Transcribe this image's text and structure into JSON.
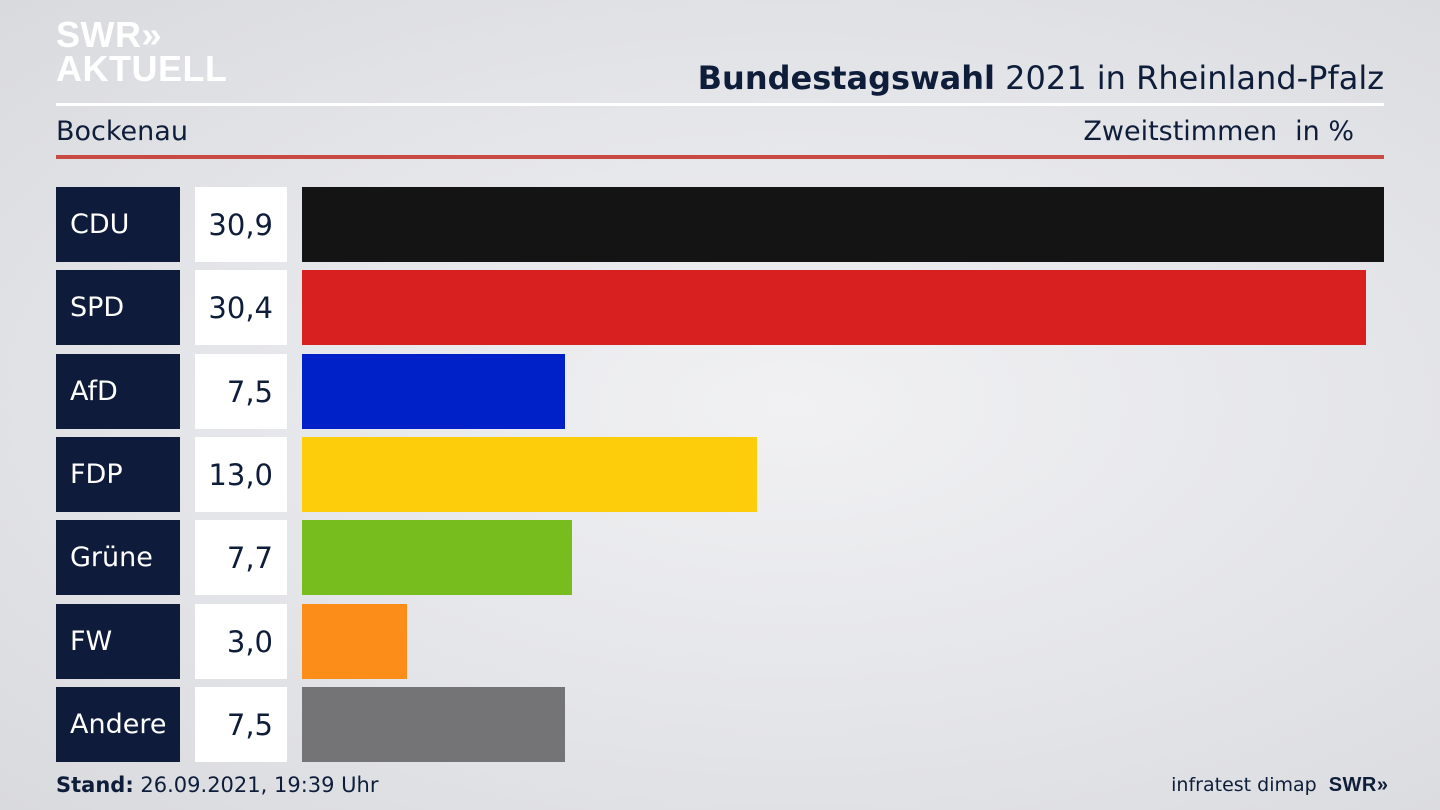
{
  "logo": {
    "line1": "SWR",
    "line1_arrows": "»",
    "line2": "AKTUELL"
  },
  "header": {
    "title_bold": "Bundestagswahl",
    "title_rest": " 2021 in Rheinland-Pfalz",
    "region": "Bockenau",
    "metric": "Zweitstimmen",
    "unit": "in %"
  },
  "footer": {
    "stand_label": "Stand:",
    "stand_value": " 26.09.2021, 19:39 Uhr",
    "source": "infratest dimap",
    "brand": "SWR",
    "brand_arrows": "»"
  },
  "chart_data": {
    "type": "bar",
    "orientation": "horizontal",
    "categories": [
      "CDU",
      "SPD",
      "AfD",
      "FDP",
      "Grüne",
      "FW",
      "Andere"
    ],
    "values": [
      30.9,
      30.4,
      7.5,
      13.0,
      7.7,
      3.0,
      7.5
    ],
    "value_labels": [
      "30,9",
      "30,4",
      "7,5",
      "13,0",
      "7,7",
      "3,0",
      "7,5"
    ],
    "colors": [
      "#141414",
      "#d82020",
      "#0021c8",
      "#fdcc0b",
      "#77bd1e",
      "#fb8d18",
      "#747476"
    ],
    "xlim": [
      0,
      30.9
    ]
  }
}
